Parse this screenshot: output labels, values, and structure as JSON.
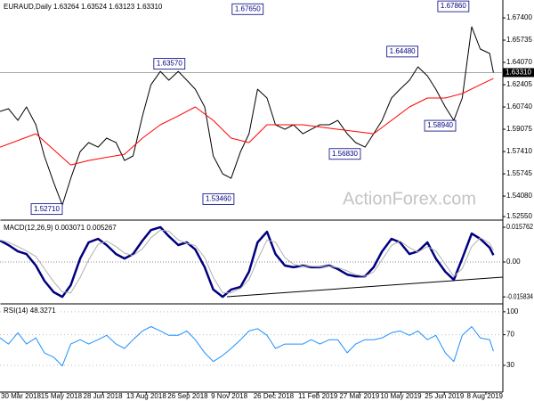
{
  "chart_data": [
    {
      "type": "line",
      "title": "EURAUD,Daily  1.63264 1.63524 1.63123 1.63310",
      "watermark": "ActionForex.com",
      "xlim": [
        "2018-03-11",
        "2019-08-26"
      ],
      "ylim": [
        1.5242,
        1.686
      ],
      "yticks": [
        {
          "value": 1.674,
          "label": "1.67400"
        },
        {
          "value": 1.65735,
          "label": "1.65735"
        },
        {
          "value": 1.6407,
          "label": "1.64070"
        },
        {
          "value": 1.62405,
          "label": "1.62405"
        },
        {
          "value": 1.6074,
          "label": "1.60740"
        },
        {
          "value": 1.59075,
          "label": "1.59075"
        },
        {
          "value": 1.5741,
          "label": "1.57410"
        },
        {
          "value": 1.55745,
          "label": "1.55745"
        },
        {
          "value": 1.5408,
          "label": "1.54080"
        },
        {
          "value": 1.5255,
          "label": "1.52550"
        }
      ],
      "grid": false,
      "series": [
        {
          "color": "#000000",
          "x": [
            "2018-03-11",
            "2018-03-20",
            "2018-03-30",
            "2018-04-08",
            "2018-04-18",
            "2018-04-27",
            "2018-05-07",
            "2018-05-16",
            "2018-05-25",
            "2018-06-04",
            "2018-06-13",
            "2018-06-23",
            "2018-07-02",
            "2018-07-12",
            "2018-07-21",
            "2018-07-30",
            "2018-08-09",
            "2018-08-18",
            "2018-08-28",
            "2018-09-06",
            "2018-09-16",
            "2018-09-25",
            "2018-10-04",
            "2018-10-14",
            "2018-10-23",
            "2018-11-02",
            "2018-11-11",
            "2018-11-21",
            "2018-11-30",
            "2018-12-09",
            "2018-12-19",
            "2018-12-28",
            "2019-01-07",
            "2019-01-16",
            "2019-01-26",
            "2019-02-04",
            "2019-02-13",
            "2019-02-23",
            "2019-03-04",
            "2019-03-14",
            "2019-03-23",
            "2019-04-02",
            "2019-04-11",
            "2019-04-20",
            "2019-04-30",
            "2019-05-09",
            "2019-05-19",
            "2019-05-28",
            "2019-06-07",
            "2019-06-16",
            "2019-06-26",
            "2019-07-05",
            "2019-07-14",
            "2019-07-24",
            "2019-08-02",
            "2019-08-12",
            "2019-08-16"
          ],
          "values": [
            1.6041,
            1.6061,
            1.5974,
            1.6074,
            1.5941,
            1.5708,
            1.5508,
            1.5341,
            1.5541,
            1.5741,
            1.5808,
            1.5774,
            1.5841,
            1.5808,
            1.5674,
            1.5708,
            1.6007,
            1.624,
            1.634,
            1.6274,
            1.634,
            1.6274,
            1.6207,
            1.6074,
            1.5708,
            1.5574,
            1.5541,
            1.5741,
            1.5874,
            1.6207,
            1.6141,
            1.5941,
            1.5907,
            1.5941,
            1.5874,
            1.5907,
            1.5941,
            1.5941,
            1.5974,
            1.5874,
            1.5808,
            1.5774,
            1.5874,
            1.5974,
            1.6141,
            1.6207,
            1.6274,
            1.6374,
            1.6307,
            1.6207,
            1.6074,
            1.5974,
            1.6141,
            1.6673,
            1.6507,
            1.6474,
            1.6331
          ]
        },
        {
          "color": "#ff0000",
          "x": [
            "2018-03-11",
            "2018-04-18",
            "2018-05-25",
            "2018-06-13",
            "2018-07-21",
            "2018-08-09",
            "2018-08-28",
            "2018-09-16",
            "2018-10-04",
            "2018-10-23",
            "2018-11-11",
            "2018-11-30",
            "2018-12-19",
            "2019-01-26",
            "2019-03-04",
            "2019-04-11",
            "2019-05-19",
            "2019-06-07",
            "2019-06-26",
            "2019-07-14",
            "2019-08-02",
            "2019-08-16"
          ],
          "values": [
            1.5774,
            1.5874,
            1.5641,
            1.5674,
            1.5721,
            1.5841,
            1.5941,
            1.6007,
            1.6074,
            1.5974,
            1.5841,
            1.5808,
            1.5941,
            1.5941,
            1.5907,
            1.5874,
            1.6074,
            1.6141,
            1.6141,
            1.6174,
            1.624,
            1.6287
          ]
        }
      ],
      "last_price": {
        "value": 1.6331,
        "label": "1.63310"
      },
      "annotations": [
        {
          "x": "2018-05-16",
          "y": 1.5271,
          "label": "1.52710"
        },
        {
          "x": "2018-09-23",
          "y": 1.6357,
          "label": "1.63570"
        },
        {
          "x": "2018-11-14",
          "y": 1.5346,
          "label": "1.53460"
        },
        {
          "x": "2018-12-15",
          "y": 1.6765,
          "label": "1.67650"
        },
        {
          "x": "2019-03-28",
          "y": 1.5683,
          "label": "1.56830"
        },
        {
          "x": "2019-05-28",
          "y": 1.6448,
          "label": "1.64480"
        },
        {
          "x": "2019-07-07",
          "y": 1.5894,
          "label": "1.58940"
        },
        {
          "x": "2019-07-21",
          "y": 1.6786,
          "label": "1.67860"
        }
      ]
    },
    {
      "type": "line",
      "title": "MACD(12,26,9) 0.003071 0.005267",
      "xlim": [
        "2018-03-11",
        "2019-08-26"
      ],
      "ylim": [
        -0.0182,
        0.0178
      ],
      "yticks": [
        0.015762,
        {
          "value": 0,
          "label": "0.00"
        },
        -0.015834
      ],
      "grid": false,
      "series": [
        {
          "color": "#000080",
          "x": [
            "2018-03-11",
            "2018-03-20",
            "2018-03-30",
            "2018-04-08",
            "2018-04-18",
            "2018-04-27",
            "2018-05-07",
            "2018-05-16",
            "2018-05-25",
            "2018-06-04",
            "2018-06-13",
            "2018-06-23",
            "2018-07-02",
            "2018-07-12",
            "2018-07-21",
            "2018-07-30",
            "2018-08-09",
            "2018-08-18",
            "2018-08-28",
            "2018-09-06",
            "2018-09-16",
            "2018-09-25",
            "2018-10-04",
            "2018-10-14",
            "2018-10-23",
            "2018-11-02",
            "2018-11-11",
            "2018-11-21",
            "2018-11-30",
            "2018-12-09",
            "2018-12-19",
            "2018-12-28",
            "2019-01-07",
            "2019-01-16",
            "2019-01-26",
            "2019-02-04",
            "2019-02-13",
            "2019-02-23",
            "2019-03-04",
            "2019-03-14",
            "2019-03-23",
            "2019-04-02",
            "2019-04-11",
            "2019-04-20",
            "2019-04-30",
            "2019-05-09",
            "2019-05-19",
            "2019-05-28",
            "2019-06-07",
            "2019-06-16",
            "2019-06-26",
            "2019-07-05",
            "2019-07-14",
            "2019-07-24",
            "2019-08-02",
            "2019-08-12",
            "2019-08-16"
          ],
          "values": [
            0.0097,
            0.0077,
            0.0048,
            0.0036,
            -0.0016,
            -0.0085,
            -0.0137,
            -0.0158,
            -0.0105,
            0.0016,
            0.0089,
            0.0105,
            0.0077,
            0.0036,
            0.0016,
            0.0036,
            0.0097,
            0.0145,
            0.0158,
            0.0117,
            0.0077,
            0.0089,
            0.0057,
            -0.0024,
            -0.0125,
            -0.0158,
            -0.0125,
            -0.0113,
            -0.0044,
            0.0089,
            0.0137,
            0.0036,
            -0.0016,
            -0.0024,
            -0.0016,
            -0.0024,
            -0.0024,
            -0.0016,
            -0.0032,
            -0.0057,
            -0.0065,
            -0.0065,
            -0.0024,
            0.0048,
            0.0105,
            0.0089,
            0.0036,
            0.0048,
            0.0089,
            0.0016,
            -0.0044,
            -0.0081,
            0.0016,
            0.0129,
            0.0105,
            0.0065,
            0.0031
          ]
        },
        {
          "color": "#b0b0b0",
          "x": [
            "2018-03-11",
            "2018-03-20",
            "2018-03-30",
            "2018-04-08",
            "2018-04-18",
            "2018-04-27",
            "2018-05-07",
            "2018-05-16",
            "2018-05-25",
            "2018-06-04",
            "2018-06-13",
            "2018-06-23",
            "2018-07-02",
            "2018-07-12",
            "2018-07-21",
            "2018-07-30",
            "2018-08-09",
            "2018-08-18",
            "2018-08-28",
            "2018-09-06",
            "2018-09-16",
            "2018-09-25",
            "2018-10-04",
            "2018-10-14",
            "2018-10-23",
            "2018-11-02",
            "2018-11-11",
            "2018-11-21",
            "2018-11-30",
            "2018-12-09",
            "2018-12-19",
            "2018-12-28",
            "2019-01-07",
            "2019-01-16",
            "2019-01-26",
            "2019-02-04",
            "2019-02-13",
            "2019-02-23",
            "2019-03-04",
            "2019-03-14",
            "2019-03-23",
            "2019-04-02",
            "2019-04-11",
            "2019-04-20",
            "2019-04-30",
            "2019-05-09",
            "2019-05-19",
            "2019-05-28",
            "2019-06-07",
            "2019-06-16",
            "2019-06-26",
            "2019-07-05",
            "2019-07-14",
            "2019-07-24",
            "2019-08-02",
            "2019-08-12",
            "2019-08-16"
          ],
          "values": [
            0.01,
            0.009,
            0.007,
            0.005,
            0.0025,
            -0.003,
            -0.009,
            -0.0135,
            -0.014,
            -0.007,
            0.001,
            0.008,
            0.0095,
            0.007,
            0.004,
            0.003,
            0.006,
            0.011,
            0.0145,
            0.014,
            0.01,
            0.0085,
            0.0075,
            0.002,
            -0.007,
            -0.014,
            -0.014,
            -0.012,
            -0.008,
            0.001,
            0.01,
            0.009,
            0.002,
            -0.001,
            -0.002,
            -0.002,
            -0.0022,
            -0.002,
            -0.0025,
            -0.004,
            -0.0058,
            -0.0065,
            -0.0045,
            0.001,
            0.0075,
            0.0095,
            0.0065,
            0.0045,
            0.007,
            0.005,
            -0.001,
            -0.0065,
            -0.003,
            0.007,
            0.011,
            0.0085,
            0.0053
          ]
        }
      ]
    },
    {
      "type": "line",
      "title": "RSI(14) 48.3271",
      "xlim": [
        "2018-03-11",
        "2019-08-26"
      ],
      "ylim": [
        -5,
        108
      ],
      "yticks": [
        100,
        70,
        30
      ],
      "xticks": [
        {
          "value": "2018-03-30",
          "label": "30 Mar 2018"
        },
        {
          "value": "2018-05-15",
          "label": "15 May 2018"
        },
        {
          "value": "2018-06-28",
          "label": "28 Jun 2018"
        },
        {
          "value": "2018-08-13",
          "label": "13 Aug 2018"
        },
        {
          "value": "2018-09-26",
          "label": "26 Sep 2018"
        },
        {
          "value": "2018-11-09",
          "label": "9 Nov 2018"
        },
        {
          "value": "2018-12-26",
          "label": "26 Dec 2018"
        },
        {
          "value": "2019-02-11",
          "label": "11 Feb 2019"
        },
        {
          "value": "2019-03-27",
          "label": "27 Mar 2019"
        },
        {
          "value": "2019-05-10",
          "label": "10 May 2019"
        },
        {
          "value": "2019-06-25",
          "label": "25 Jun 2019"
        },
        {
          "value": "2019-08-08",
          "label": "8 Aug 2019"
        }
      ],
      "grid": false,
      "series": [
        {
          "color": "#1e90ff",
          "x": [
            "2018-03-11",
            "2018-03-20",
            "2018-03-30",
            "2018-04-08",
            "2018-04-18",
            "2018-04-27",
            "2018-05-07",
            "2018-05-16",
            "2018-05-25",
            "2018-06-04",
            "2018-06-13",
            "2018-06-23",
            "2018-07-02",
            "2018-07-12",
            "2018-07-21",
            "2018-07-30",
            "2018-08-09",
            "2018-08-18",
            "2018-08-28",
            "2018-09-06",
            "2018-09-16",
            "2018-09-25",
            "2018-10-04",
            "2018-10-14",
            "2018-10-23",
            "2018-11-02",
            "2018-11-11",
            "2018-11-21",
            "2018-11-30",
            "2018-12-09",
            "2018-12-19",
            "2018-12-28",
            "2019-01-07",
            "2019-01-16",
            "2019-01-26",
            "2019-02-04",
            "2019-02-13",
            "2019-02-23",
            "2019-03-04",
            "2019-03-14",
            "2019-03-23",
            "2019-04-02",
            "2019-04-11",
            "2019-04-20",
            "2019-04-30",
            "2019-05-09",
            "2019-05-19",
            "2019-05-28",
            "2019-06-07",
            "2019-06-16",
            "2019-06-26",
            "2019-07-05",
            "2019-07-14",
            "2019-07-24",
            "2019-08-02",
            "2019-08-12",
            "2019-08-16"
          ],
          "values": [
            65.8,
            57.8,
            72.6,
            57.8,
            65.8,
            46.4,
            40.6,
            29.2,
            57.8,
            63.5,
            57.8,
            63.5,
            69.2,
            57.8,
            52.1,
            63.5,
            74.9,
            80.6,
            74.9,
            69.2,
            69.2,
            74.9,
            63.5,
            46.4,
            34.9,
            42.9,
            52.1,
            63.5,
            74.9,
            78,
            69.2,
            52.1,
            57.8,
            57.8,
            57.8,
            63.5,
            57.8,
            63.5,
            63.5,
            46.4,
            57.8,
            63.5,
            63.5,
            65.8,
            72.6,
            74.9,
            69.2,
            74.9,
            63.5,
            69.2,
            46.4,
            34.9,
            69.2,
            80.6,
            65.8,
            63.5,
            48.3
          ]
        }
      ]
    }
  ]
}
